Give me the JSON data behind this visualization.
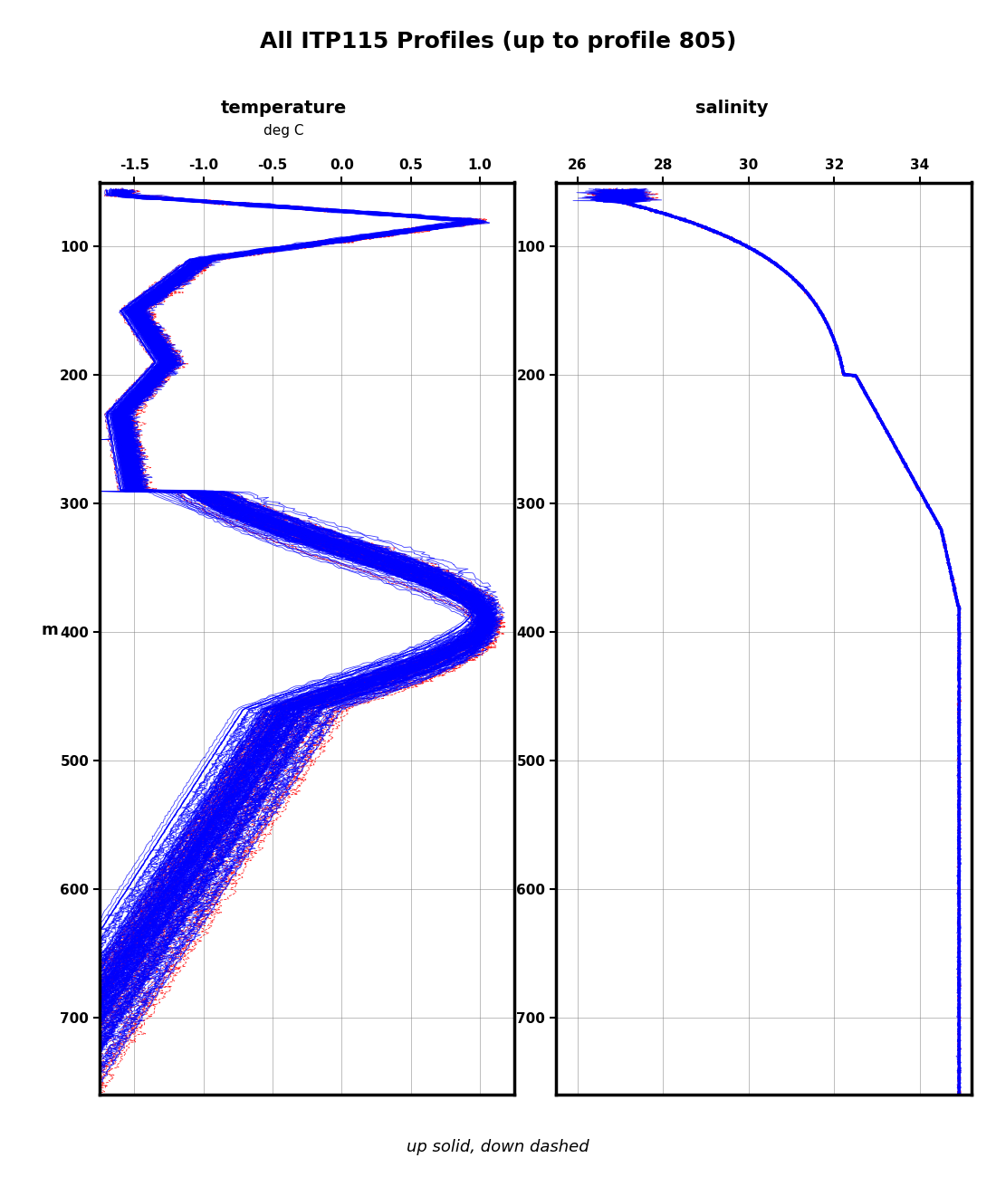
{
  "title": "All ITP115 Profiles (up to profile 805)",
  "title_fontsize": 18,
  "temp_label": "temperature",
  "temp_sublabel": "deg C",
  "sal_label": "salinity",
  "bottom_note": "up solid, down dashed",
  "temp_xlim": [
    -1.75,
    1.25
  ],
  "temp_xticks": [
    -1.5,
    -1.0,
    -0.5,
    0.0,
    0.5,
    1.0
  ],
  "sal_xlim": [
    25.5,
    35.2
  ],
  "sal_xticks": [
    26,
    28,
    30,
    32,
    34
  ],
  "ylim": [
    760,
    50
  ],
  "yticks": [
    100,
    200,
    300,
    400,
    500,
    600,
    700
  ],
  "line_color_up": "#0000FF",
  "line_color_down": "#FF0000",
  "background": "#FFFFFF",
  "linewidth": 0.6
}
